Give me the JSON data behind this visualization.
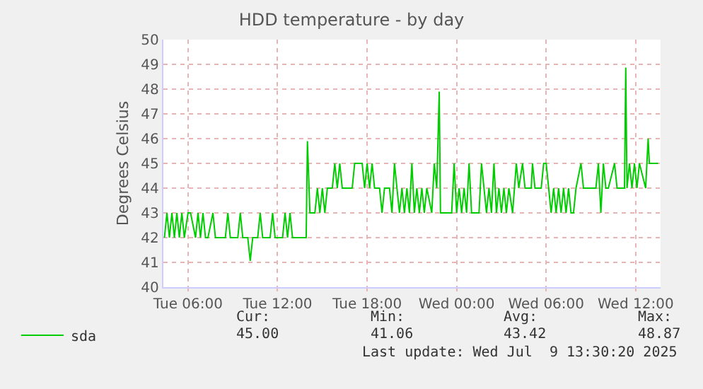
{
  "chart_data": {
    "type": "line",
    "title": "HDD temperature - by day",
    "ylabel": "Degrees Celsius",
    "x": [
      "2025-07-08T04:25",
      "2025-07-08T04:35",
      "2025-07-08T04:45",
      "2025-07-08T04:55",
      "2025-07-08T05:05",
      "2025-07-08T05:15",
      "2025-07-08T05:25",
      "2025-07-08T05:35",
      "2025-07-08T05:45",
      "2025-07-08T06:00",
      "2025-07-08T06:10",
      "2025-07-08T06:30",
      "2025-07-08T06:40",
      "2025-07-08T06:50",
      "2025-07-08T07:00",
      "2025-07-08T07:10",
      "2025-07-08T07:20",
      "2025-07-08T07:40",
      "2025-07-08T07:50",
      "2025-07-08T08:00",
      "2025-07-08T08:30",
      "2025-07-08T08:40",
      "2025-07-08T08:50",
      "2025-07-08T09:20",
      "2025-07-08T09:30",
      "2025-07-08T09:40",
      "2025-07-08T10:00",
      "2025-07-08T10:10",
      "2025-07-08T10:20",
      "2025-07-08T10:40",
      "2025-07-08T10:50",
      "2025-07-08T11:00",
      "2025-07-08T11:30",
      "2025-07-08T11:40",
      "2025-07-08T11:50",
      "2025-07-08T12:20",
      "2025-07-08T12:30",
      "2025-07-08T12:40",
      "2025-07-08T12:50",
      "2025-07-08T13:00",
      "2025-07-08T13:55",
      "2025-07-08T14:00",
      "2025-07-08T14:10",
      "2025-07-08T14:30",
      "2025-07-08T14:40",
      "2025-07-08T14:50",
      "2025-07-08T15:00",
      "2025-07-08T15:10",
      "2025-07-08T15:20",
      "2025-07-08T15:40",
      "2025-07-08T15:50",
      "2025-07-08T16:00",
      "2025-07-08T16:10",
      "2025-07-08T16:20",
      "2025-07-08T17:00",
      "2025-07-08T17:10",
      "2025-07-08T17:40",
      "2025-07-08T17:50",
      "2025-07-08T18:00",
      "2025-07-08T18:10",
      "2025-07-08T18:20",
      "2025-07-08T18:30",
      "2025-07-08T18:50",
      "2025-07-08T19:00",
      "2025-07-08T19:10",
      "2025-07-08T19:30",
      "2025-07-08T19:40",
      "2025-07-08T19:50",
      "2025-07-08T20:00",
      "2025-07-08T20:10",
      "2025-07-08T20:20",
      "2025-07-08T20:30",
      "2025-07-08T20:40",
      "2025-07-08T20:50",
      "2025-07-08T21:00",
      "2025-07-08T21:10",
      "2025-07-08T21:20",
      "2025-07-08T21:30",
      "2025-07-08T21:40",
      "2025-07-08T21:50",
      "2025-07-08T22:00",
      "2025-07-08T22:20",
      "2025-07-08T22:30",
      "2025-07-08T22:40",
      "2025-07-08T22:50",
      "2025-07-08T22:55",
      "2025-07-08T23:40",
      "2025-07-08T23:50",
      "2025-07-09T00:00",
      "2025-07-09T00:10",
      "2025-07-09T00:20",
      "2025-07-09T00:30",
      "2025-07-09T00:40",
      "2025-07-09T00:50",
      "2025-07-09T01:00",
      "2025-07-09T01:30",
      "2025-07-09T01:40",
      "2025-07-09T01:50",
      "2025-07-09T02:00",
      "2025-07-09T02:10",
      "2025-07-09T02:20",
      "2025-07-09T02:30",
      "2025-07-09T02:40",
      "2025-07-09T02:50",
      "2025-07-09T03:00",
      "2025-07-09T03:10",
      "2025-07-09T03:20",
      "2025-07-09T03:30",
      "2025-07-09T03:45",
      "2025-07-09T04:00",
      "2025-07-09T04:10",
      "2025-07-09T04:25",
      "2025-07-09T04:35",
      "2025-07-09T05:00",
      "2025-07-09T05:05",
      "2025-07-09T05:15",
      "2025-07-09T05:40",
      "2025-07-09T05:50",
      "2025-07-09T06:00",
      "2025-07-09T06:10",
      "2025-07-09T06:20",
      "2025-07-09T06:30",
      "2025-07-09T06:40",
      "2025-07-09T06:50",
      "2025-07-09T07:00",
      "2025-07-09T07:10",
      "2025-07-09T07:20",
      "2025-07-09T07:30",
      "2025-07-09T07:40",
      "2025-07-09T07:50",
      "2025-07-09T08:00",
      "2025-07-09T08:20",
      "2025-07-09T08:30",
      "2025-07-09T09:20",
      "2025-07-09T09:30",
      "2025-07-09T09:40",
      "2025-07-09T09:50",
      "2025-07-09T10:00",
      "2025-07-09T10:10",
      "2025-07-09T10:35",
      "2025-07-09T10:45",
      "2025-07-09T11:15",
      "2025-07-09T11:20",
      "2025-07-09T11:25",
      "2025-07-09T11:35",
      "2025-07-09T11:45",
      "2025-07-09T11:55",
      "2025-07-09T12:05",
      "2025-07-09T12:15",
      "2025-07-09T12:40",
      "2025-07-09T12:50",
      "2025-07-09T12:55",
      "2025-07-09T13:30"
    ],
    "series": [
      {
        "name": "sda",
        "color": "#00cc00",
        "values": [
          42,
          43,
          42,
          43,
          42,
          43,
          42,
          43,
          42,
          43,
          43,
          42,
          43,
          42,
          43,
          42,
          42,
          43,
          42,
          42,
          42,
          43,
          42,
          42,
          43,
          42,
          42,
          41.06,
          42,
          42,
          43,
          42,
          42,
          43,
          42,
          42,
          43,
          42,
          43,
          42,
          42,
          45.9,
          43,
          43,
          44,
          43,
          44,
          43,
          44,
          44,
          45,
          44,
          45,
          44,
          44,
          45,
          45,
          44,
          45,
          44,
          45,
          44,
          44,
          43,
          44,
          44,
          43,
          45,
          44,
          43,
          44,
          43,
          44,
          43,
          45,
          43,
          44,
          43,
          44,
          43,
          44,
          43,
          45,
          44,
          47.9,
          43,
          43,
          45,
          43,
          44,
          43,
          44,
          43,
          45,
          43,
          43,
          45,
          44,
          43,
          44,
          43,
          45,
          43,
          44,
          43,
          44,
          43,
          44,
          43,
          45,
          44,
          45,
          44,
          44,
          45,
          44,
          44,
          45,
          45,
          44,
          43,
          44,
          43,
          44,
          43,
          44,
          43,
          44,
          43,
          43,
          44,
          45,
          44,
          44,
          45,
          43,
          45,
          44,
          44,
          45,
          44,
          44,
          48.87,
          44,
          45,
          44,
          45,
          44,
          45,
          44,
          46,
          45,
          45
        ]
      }
    ],
    "xlim": [
      "2025-07-08T04:20",
      "2025-07-09T13:40"
    ],
    "xticks": [
      {
        "value": "2025-07-08T06:00",
        "label": "Tue 06:00"
      },
      {
        "value": "2025-07-08T12:00",
        "label": "Tue 12:00"
      },
      {
        "value": "2025-07-08T18:00",
        "label": "Tue 18:00"
      },
      {
        "value": "2025-07-09T00:00",
        "label": "Wed 00:00"
      },
      {
        "value": "2025-07-09T06:00",
        "label": "Wed 06:00"
      },
      {
        "value": "2025-07-09T12:00",
        "label": "Wed 12:00"
      }
    ],
    "ylim": [
      40,
      50
    ],
    "yticks": [
      40,
      41,
      42,
      43,
      44,
      45,
      46,
      47,
      48,
      49,
      50
    ],
    "grid": true,
    "legend": "bottom left",
    "marker": "none",
    "line_style": "solid",
    "annotations": [
      "Cur:",
      "45.00",
      "Min:",
      "41.06",
      "Avg:",
      "43.42",
      "Max:",
      "48.87",
      "Last update: Wed Jul  9 13:30:20 2025"
    ]
  }
}
